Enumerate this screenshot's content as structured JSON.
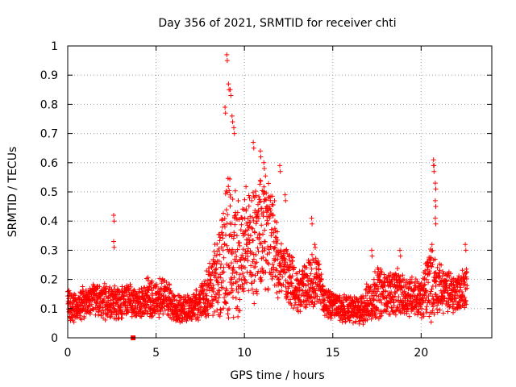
{
  "chart_data": {
    "type": "scatter",
    "title": "Day 356 of 2021, SRMTID for receiver chti",
    "xlabel": "GPS time / hours",
    "ylabel": "SRMTID / TECUs",
    "xlim": [
      0,
      24
    ],
    "ylim": [
      0,
      1
    ],
    "x_ticks": [
      0,
      5,
      10,
      15,
      20
    ],
    "x_tick_labels": [
      "0",
      "5",
      "10",
      "15",
      "20"
    ],
    "y_ticks": [
      0,
      0.1,
      0.2,
      0.3,
      0.4,
      0.5,
      0.6,
      0.7,
      0.8,
      0.9,
      1
    ],
    "y_tick_labels": [
      "0",
      "0.1",
      "0.2",
      "0.3",
      "0.4",
      "0.5",
      "0.6",
      "0.7",
      "0.8",
      "0.9",
      "1"
    ],
    "grid": true,
    "marker": "+",
    "series_color": "#ff0000",
    "profile_hours": [
      0,
      0.5,
      1,
      1.5,
      2,
      2.5,
      3,
      3.5,
      4,
      4.5,
      5,
      5.5,
      6,
      6.5,
      7,
      7.5,
      8,
      8.5,
      9,
      9.5,
      10,
      10.5,
      11,
      11.5,
      12,
      12.5,
      13,
      13.5,
      14,
      14.5,
      15,
      15.5,
      16,
      16.5,
      17,
      17.5,
      18,
      18.5,
      19,
      19.5,
      20,
      20.5,
      21,
      21.5,
      22,
      22.6
    ],
    "profile_center": [
      0.1,
      0.11,
      0.12,
      0.13,
      0.12,
      0.13,
      0.12,
      0.13,
      0.11,
      0.14,
      0.13,
      0.15,
      0.1,
      0.1,
      0.1,
      0.12,
      0.16,
      0.22,
      0.32,
      0.3,
      0.28,
      0.32,
      0.36,
      0.33,
      0.25,
      0.22,
      0.16,
      0.18,
      0.22,
      0.13,
      0.11,
      0.1,
      0.1,
      0.09,
      0.12,
      0.16,
      0.15,
      0.16,
      0.14,
      0.15,
      0.13,
      0.2,
      0.17,
      0.16,
      0.15,
      0.18
    ],
    "profile_spread": [
      0.05,
      0.04,
      0.05,
      0.05,
      0.05,
      0.05,
      0.05,
      0.05,
      0.04,
      0.06,
      0.05,
      0.06,
      0.04,
      0.04,
      0.04,
      0.05,
      0.08,
      0.12,
      0.22,
      0.2,
      0.18,
      0.18,
      0.2,
      0.16,
      0.1,
      0.08,
      0.06,
      0.08,
      0.1,
      0.05,
      0.04,
      0.04,
      0.04,
      0.04,
      0.06,
      0.08,
      0.06,
      0.07,
      0.06,
      0.06,
      0.05,
      0.12,
      0.07,
      0.06,
      0.06,
      0.06
    ],
    "spikes": [
      {
        "x": 2.6,
        "y": 0.42
      },
      {
        "x": 2.6,
        "y": 0.33
      },
      {
        "x": 9.0,
        "y": 0.97
      },
      {
        "x": 9.1,
        "y": 0.87
      },
      {
        "x": 9.2,
        "y": 0.85
      },
      {
        "x": 8.9,
        "y": 0.79
      },
      {
        "x": 9.3,
        "y": 0.76
      },
      {
        "x": 9.4,
        "y": 0.72
      },
      {
        "x": 10.5,
        "y": 0.67
      },
      {
        "x": 10.9,
        "y": 0.64
      },
      {
        "x": 11.1,
        "y": 0.6
      },
      {
        "x": 12.0,
        "y": 0.59
      },
      {
        "x": 12.3,
        "y": 0.49
      },
      {
        "x": 13.8,
        "y": 0.41
      },
      {
        "x": 17.2,
        "y": 0.3
      },
      {
        "x": 18.8,
        "y": 0.3
      },
      {
        "x": 20.7,
        "y": 0.61
      },
      {
        "x": 20.7,
        "y": 0.59
      },
      {
        "x": 20.8,
        "y": 0.53
      },
      {
        "x": 20.8,
        "y": 0.47
      },
      {
        "x": 20.8,
        "y": 0.41
      },
      {
        "x": 22.5,
        "y": 0.32
      }
    ],
    "gap_marker": {
      "x": 3.7,
      "y": 0.0
    }
  }
}
